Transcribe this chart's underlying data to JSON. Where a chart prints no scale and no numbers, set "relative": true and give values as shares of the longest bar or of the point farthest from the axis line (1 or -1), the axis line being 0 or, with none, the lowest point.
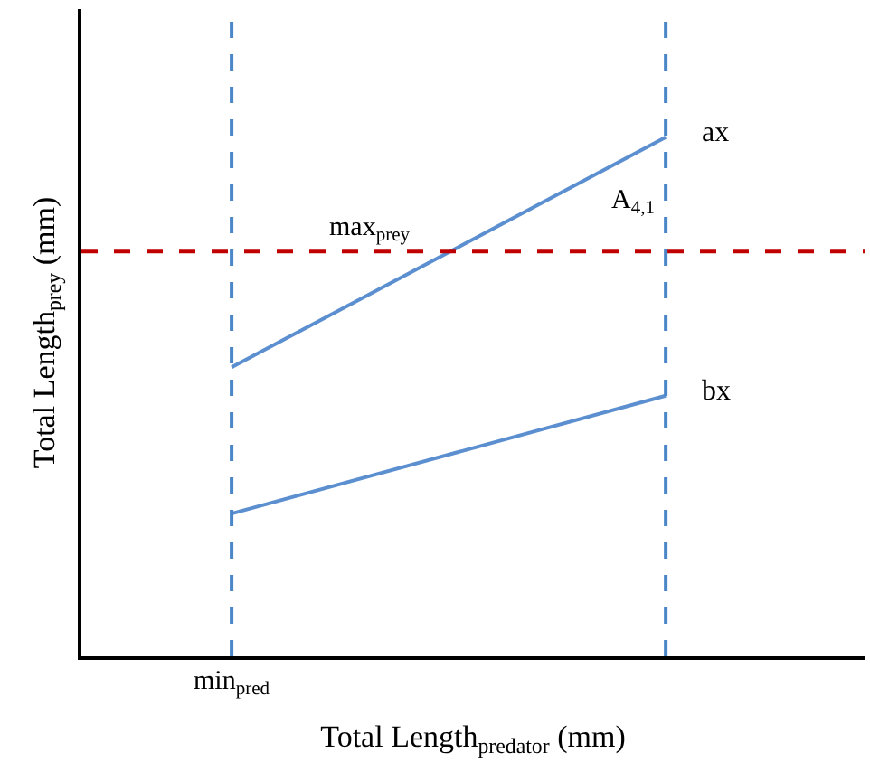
{
  "chart_data": {
    "type": "line",
    "relative": true,
    "xlabel": "Total Length$_{predator}$ (mm)",
    "ylabel": "Total Length$_{prey}$ (mm)",
    "categories": [
      null,
      null
    ],
    "series": [
      {
        "name": "ax",
        "color": "#5b8fd0",
        "values": [
          0.557,
          1
        ]
      },
      {
        "name": "bx",
        "color": "#5b8fd0",
        "values": [
          0.275,
          0.502
        ]
      }
    ],
    "ref_lines": [
      {
        "axis": "y",
        "value": 0.78,
        "label": "max$_{prey}$",
        "color": "#c00000",
        "line_style": "dashed"
      }
    ],
    "annotations": [
      "min$_{pred}$",
      "A$_{4,1}$"
    ],
    "marker": "none",
    "line_style": "solid",
    "legend": false
  }
}
